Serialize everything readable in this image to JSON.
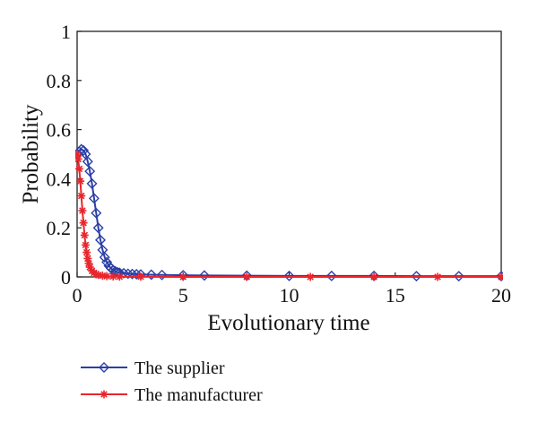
{
  "chart_data": {
    "type": "line",
    "xlabel": "Evolutionary time",
    "ylabel": "Probability",
    "xlim": [
      0,
      20
    ],
    "ylim": [
      0,
      1
    ],
    "xticks": [
      0,
      5,
      10,
      15,
      20
    ],
    "yticks": [
      0,
      0.2,
      0.4,
      0.6,
      0.8,
      1
    ],
    "ytick_labels": [
      "0",
      "0.2",
      "0.4",
      "0.6",
      "0.8",
      "1"
    ],
    "grid": false,
    "legend_position": "below",
    "series": [
      {
        "name": "The supplier",
        "color": "#2b3fa6",
        "marker": "diamond",
        "points": [
          [
            0,
            0.5
          ],
          [
            0.1,
            0.51
          ],
          [
            0.2,
            0.52
          ],
          [
            0.3,
            0.515
          ],
          [
            0.4,
            0.5
          ],
          [
            0.5,
            0.47
          ],
          [
            0.6,
            0.43
          ],
          [
            0.7,
            0.38
          ],
          [
            0.8,
            0.32
          ],
          [
            0.9,
            0.26
          ],
          [
            1.0,
            0.2
          ],
          [
            1.1,
            0.15
          ],
          [
            1.2,
            0.11
          ],
          [
            1.3,
            0.08
          ],
          [
            1.4,
            0.06
          ],
          [
            1.5,
            0.045
          ],
          [
            1.6,
            0.035
          ],
          [
            1.7,
            0.028
          ],
          [
            1.8,
            0.023
          ],
          [
            1.9,
            0.019
          ],
          [
            2.0,
            0.017
          ],
          [
            2.2,
            0.015
          ],
          [
            2.4,
            0.013
          ],
          [
            2.6,
            0.012
          ],
          [
            2.8,
            0.011
          ],
          [
            3.0,
            0.01
          ],
          [
            3.5,
            0.009
          ],
          [
            4.0,
            0.008
          ],
          [
            5,
            0.007
          ],
          [
            6,
            0.006
          ],
          [
            8,
            0.005
          ],
          [
            10,
            0.004
          ],
          [
            12,
            0.004
          ],
          [
            14,
            0.004
          ],
          [
            16,
            0.003
          ],
          [
            18,
            0.003
          ],
          [
            20,
            0.003
          ]
        ]
      },
      {
        "name": "The manufacturer",
        "color": "#e8262d",
        "marker": "asterisk",
        "points": [
          [
            0,
            0.5
          ],
          [
            0.05,
            0.48
          ],
          [
            0.1,
            0.44
          ],
          [
            0.15,
            0.39
          ],
          [
            0.2,
            0.33
          ],
          [
            0.25,
            0.27
          ],
          [
            0.3,
            0.22
          ],
          [
            0.35,
            0.17
          ],
          [
            0.4,
            0.13
          ],
          [
            0.45,
            0.1
          ],
          [
            0.5,
            0.075
          ],
          [
            0.55,
            0.055
          ],
          [
            0.6,
            0.04
          ],
          [
            0.7,
            0.025
          ],
          [
            0.8,
            0.016
          ],
          [
            0.9,
            0.011
          ],
          [
            1.0,
            0.008
          ],
          [
            1.2,
            0.005
          ],
          [
            1.4,
            0.003
          ],
          [
            1.7,
            0.002
          ],
          [
            2.0,
            0.001
          ],
          [
            3,
            0.001
          ],
          [
            5,
            0.0
          ],
          [
            8,
            0.0
          ],
          [
            11,
            0.0
          ],
          [
            14,
            0.0
          ],
          [
            17,
            0.0
          ],
          [
            20,
            0.0
          ]
        ]
      }
    ]
  }
}
